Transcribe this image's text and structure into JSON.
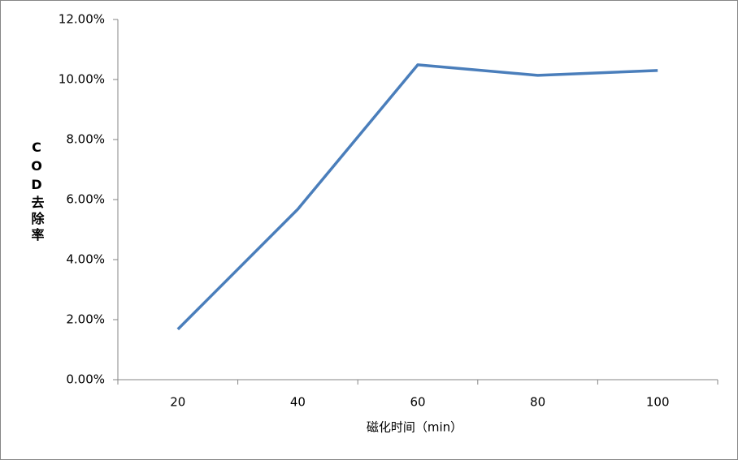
{
  "chart_data": {
    "type": "line",
    "x_label": "磁化时间（min）",
    "y_label": "COD去除率",
    "categories": [
      "20",
      "40",
      "60",
      "80",
      "100"
    ],
    "series": [
      {
        "name": "COD去除率",
        "color": "#4a7ebb",
        "values": [
          1.68,
          5.68,
          10.49,
          10.14,
          10.3
        ]
      }
    ],
    "ylim": [
      0,
      12
    ],
    "yticks": [
      {
        "value": 0,
        "label": "0.00%"
      },
      {
        "value": 2,
        "label": "2.00%"
      },
      {
        "value": 4,
        "label": "4.00%"
      },
      {
        "value": 6,
        "label": "6.00%"
      },
      {
        "value": 8,
        "label": "8.00%"
      },
      {
        "value": 10,
        "label": "10.00%"
      },
      {
        "value": 12,
        "label": "12.00%"
      }
    ],
    "grid": false
  }
}
